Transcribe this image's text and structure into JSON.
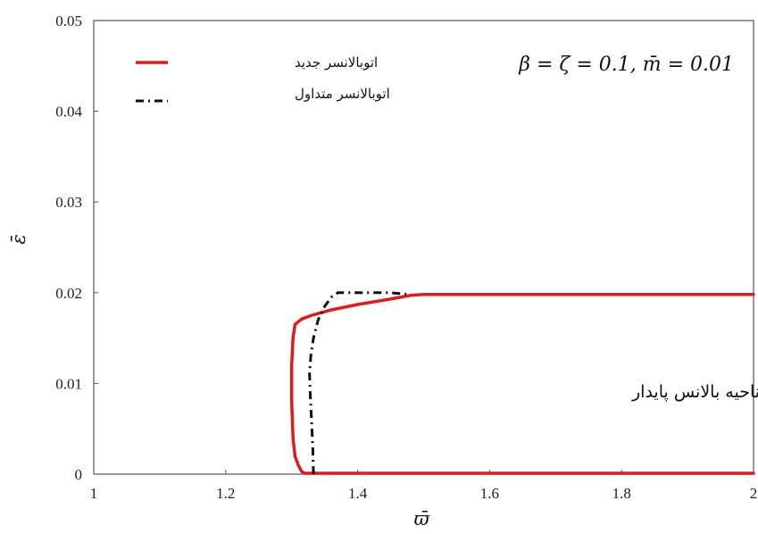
{
  "chart_data": {
    "type": "line",
    "title": "",
    "xlabel": "ϖ̄",
    "ylabel": "ε̄",
    "xlim": [
      1,
      2
    ],
    "ylim": [
      0,
      0.05
    ],
    "xticks": [
      1,
      1.2,
      1.4,
      1.6,
      1.8,
      2
    ],
    "xtick_labels": [
      "1",
      "1.2",
      "1.4",
      "1.6",
      "1.8",
      "2"
    ],
    "yticks": [
      0,
      0.01,
      0.02,
      0.03,
      0.04,
      0.05
    ],
    "ytick_labels": [
      "0",
      "0.01",
      "0.02",
      "0.03",
      "0.04",
      "0.05"
    ],
    "grid": false,
    "legend_position": "top-left",
    "parameter_annotation": "β = ζ = 0.1, m̄ = 0.01",
    "region_annotation": "ناحیه بالانس پایدار",
    "series": [
      {
        "name": "اتوبالانسر جدید",
        "color": "#e31a1c",
        "style": "solid",
        "x": [
          2.0,
          1.6,
          1.5,
          1.48,
          1.45,
          1.4,
          1.36,
          1.33,
          1.315,
          1.31,
          1.305,
          1.302,
          1.3,
          1.3,
          1.302,
          1.305,
          1.31,
          1.315,
          1.32,
          1.33,
          1.4,
          1.6,
          1.8,
          2.0
        ],
        "y": [
          0.0198,
          0.0198,
          0.0198,
          0.0197,
          0.0193,
          0.0187,
          0.0181,
          0.0175,
          0.0171,
          0.0168,
          0.0165,
          0.015,
          0.012,
          0.008,
          0.004,
          0.002,
          0.001,
          0.0003,
          0.0001,
          0.0001,
          0.0001,
          0.0001,
          0.0001,
          0.0001
        ]
      },
      {
        "name": "اتوبالانسر متداول",
        "color": "#111111",
        "style": "dashdot",
        "x": [
          1.333,
          1.332,
          1.33,
          1.328,
          1.327,
          1.329,
          1.333,
          1.34,
          1.35,
          1.36,
          1.37,
          1.4,
          1.45,
          1.48
        ],
        "y": [
          0.0,
          0.003,
          0.006,
          0.009,
          0.011,
          0.013,
          0.015,
          0.017,
          0.0185,
          0.0195,
          0.02,
          0.02,
          0.02,
          0.0198
        ]
      }
    ]
  }
}
